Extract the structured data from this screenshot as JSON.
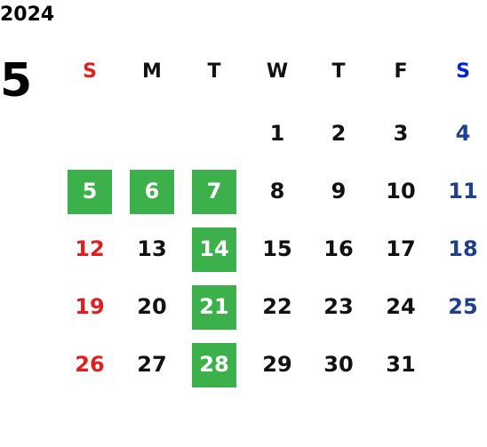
{
  "year": "2024",
  "month": "5",
  "weekdays": [
    "S",
    "M",
    "T",
    "W",
    "T",
    "F",
    "S"
  ],
  "weeks": [
    [
      null,
      null,
      null,
      {
        "day": 1
      },
      {
        "day": 2
      },
      {
        "day": 3
      },
      {
        "day": 4
      }
    ],
    [
      {
        "day": 5,
        "highlight": true
      },
      {
        "day": 6,
        "highlight": true
      },
      {
        "day": 7,
        "highlight": true
      },
      {
        "day": 8
      },
      {
        "day": 9
      },
      {
        "day": 10
      },
      {
        "day": 11
      }
    ],
    [
      {
        "day": 12
      },
      {
        "day": 13
      },
      {
        "day": 14,
        "highlight": true
      },
      {
        "day": 15
      },
      {
        "day": 16
      },
      {
        "day": 17
      },
      {
        "day": 18
      }
    ],
    [
      {
        "day": 19
      },
      {
        "day": 20
      },
      {
        "day": 21,
        "highlight": true
      },
      {
        "day": 22
      },
      {
        "day": 23
      },
      {
        "day": 24
      },
      {
        "day": 25
      }
    ],
    [
      {
        "day": 26
      },
      {
        "day": 27
      },
      {
        "day": 28,
        "highlight": true
      },
      {
        "day": 29
      },
      {
        "day": 30
      },
      {
        "day": 31
      },
      null
    ]
  ],
  "colors": {
    "sunday": "#e02020",
    "saturday_header": "#0022dd",
    "saturday": "#1f3f8f",
    "weekday": "#111111",
    "highlight": "#3cb04a",
    "highlight_text": "#ffffff"
  }
}
